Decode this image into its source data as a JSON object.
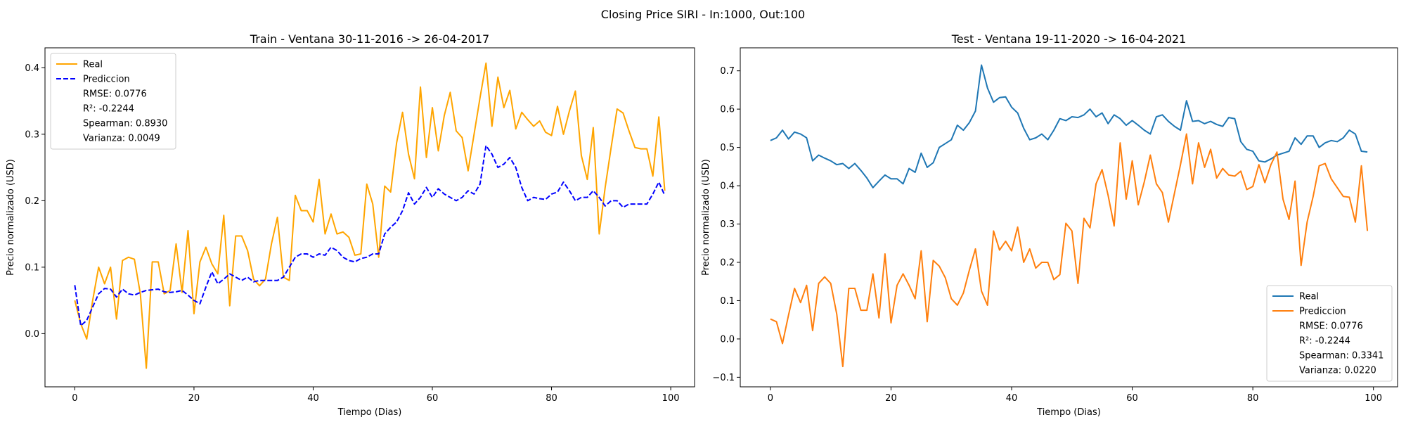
{
  "figure": {
    "suptitle": "Closing Price SIRI - In:1000, Out:100"
  },
  "chart_data": [
    {
      "type": "line",
      "title": "Train - Ventana 30-11-2016 -> 26-04-2017",
      "xlabel": "Tiempo (Dias)",
      "ylabel": "Precio normalizado (USD)",
      "xlim": [
        -5,
        104
      ],
      "ylim": [
        -0.08,
        0.43
      ],
      "x_ticks": [
        0,
        20,
        40,
        60,
        80,
        100
      ],
      "y_ticks": [
        0.0,
        0.1,
        0.2,
        0.3,
        0.4
      ],
      "y_tick_labels": [
        "0.0",
        "0.1",
        "0.2",
        "0.3",
        "0.4"
      ],
      "grid": false,
      "legend_position": "top-left",
      "series": [
        {
          "name": "Real",
          "color": "#FFA500",
          "style": "solid",
          "values": [
            0.05,
            0.015,
            -0.008,
            0.05,
            0.1,
            0.075,
            0.1,
            0.022,
            0.11,
            0.115,
            0.112,
            0.06,
            -0.052,
            0.108,
            0.108,
            0.06,
            0.065,
            0.135,
            0.062,
            0.155,
            0.03,
            0.108,
            0.13,
            0.105,
            0.09,
            0.178,
            0.042,
            0.147,
            0.147,
            0.125,
            0.082,
            0.072,
            0.082,
            0.135,
            0.175,
            0.085,
            0.08,
            0.208,
            0.185,
            0.185,
            0.168,
            0.232,
            0.15,
            0.18,
            0.15,
            0.153,
            0.145,
            0.118,
            0.12,
            0.225,
            0.195,
            0.115,
            0.222,
            0.213,
            0.287,
            0.333,
            0.27,
            0.233,
            0.371,
            0.265,
            0.34,
            0.275,
            0.328,
            0.363,
            0.305,
            0.295,
            0.245,
            0.3,
            0.355,
            0.407,
            0.312,
            0.386,
            0.34,
            0.366,
            0.308,
            0.333,
            0.322,
            0.312,
            0.32,
            0.303,
            0.298,
            0.342,
            0.3,
            0.335,
            0.365,
            0.268,
            0.232,
            0.31,
            0.15,
            0.22,
            0.28,
            0.338,
            0.332,
            0.305,
            0.28,
            0.278,
            0.278,
            0.237,
            0.326,
            0.215
          ]
        },
        {
          "name": "Prediccion",
          "color": "#0000FF",
          "style": "dashed",
          "values": [
            0.073,
            0.012,
            0.02,
            0.04,
            0.06,
            0.068,
            0.067,
            0.055,
            0.067,
            0.06,
            0.058,
            0.062,
            0.065,
            0.066,
            0.067,
            0.063,
            0.062,
            0.063,
            0.065,
            0.058,
            0.05,
            0.045,
            0.07,
            0.093,
            0.075,
            0.082,
            0.09,
            0.085,
            0.08,
            0.085,
            0.078,
            0.08,
            0.08,
            0.08,
            0.08,
            0.085,
            0.1,
            0.115,
            0.12,
            0.12,
            0.115,
            0.12,
            0.118,
            0.13,
            0.125,
            0.115,
            0.11,
            0.108,
            0.113,
            0.115,
            0.12,
            0.12,
            0.15,
            0.16,
            0.168,
            0.185,
            0.212,
            0.195,
            0.205,
            0.22,
            0.205,
            0.218,
            0.21,
            0.205,
            0.2,
            0.205,
            0.215,
            0.21,
            0.225,
            0.283,
            0.27,
            0.25,
            0.255,
            0.265,
            0.25,
            0.22,
            0.2,
            0.205,
            0.203,
            0.202,
            0.21,
            0.213,
            0.228,
            0.215,
            0.2,
            0.205,
            0.205,
            0.215,
            0.205,
            0.192,
            0.2,
            0.2,
            0.19,
            0.195,
            0.195,
            0.195,
            0.195,
            0.21,
            0.228,
            0.208
          ]
        }
      ],
      "legend_stats": [
        "RMSE: 0.0776",
        "R²: -0.2244",
        "Spearman: 0.8930",
        "Varianza: 0.0049"
      ]
    },
    {
      "type": "line",
      "title": "Test - Ventana 19-11-2020 -> 16-04-2021",
      "xlabel": "Tiempo (Dias)",
      "ylabel": "Precio normalizado (USD)",
      "xlim": [
        -5,
        104
      ],
      "ylim": [
        -0.125,
        0.76
      ],
      "x_ticks": [
        0,
        20,
        40,
        60,
        80,
        100
      ],
      "y_ticks": [
        -0.1,
        0.0,
        0.1,
        0.2,
        0.3,
        0.4,
        0.5,
        0.6,
        0.7
      ],
      "y_tick_labels": [
        "−0.1",
        "0.0",
        "0.1",
        "0.2",
        "0.3",
        "0.4",
        "0.5",
        "0.6",
        "0.7"
      ],
      "grid": false,
      "legend_position": "bottom-right",
      "series": [
        {
          "name": "Real",
          "color": "#1F77B4",
          "style": "solid",
          "values": [
            0.518,
            0.525,
            0.545,
            0.522,
            0.54,
            0.535,
            0.525,
            0.465,
            0.48,
            0.472,
            0.465,
            0.455,
            0.458,
            0.445,
            0.458,
            0.44,
            0.42,
            0.395,
            0.412,
            0.428,
            0.418,
            0.418,
            0.405,
            0.445,
            0.435,
            0.485,
            0.448,
            0.46,
            0.5,
            0.51,
            0.52,
            0.558,
            0.545,
            0.565,
            0.595,
            0.715,
            0.655,
            0.618,
            0.63,
            0.632,
            0.605,
            0.59,
            0.55,
            0.52,
            0.525,
            0.535,
            0.52,
            0.545,
            0.575,
            0.57,
            0.58,
            0.578,
            0.585,
            0.6,
            0.58,
            0.59,
            0.562,
            0.585,
            0.575,
            0.558,
            0.57,
            0.558,
            0.545,
            0.535,
            0.58,
            0.585,
            0.568,
            0.555,
            0.545,
            0.622,
            0.568,
            0.57,
            0.562,
            0.568,
            0.56,
            0.555,
            0.578,
            0.575,
            0.515,
            0.495,
            0.49,
            0.465,
            0.462,
            0.47,
            0.48,
            0.485,
            0.49,
            0.525,
            0.508,
            0.53,
            0.53,
            0.5,
            0.512,
            0.518,
            0.515,
            0.525,
            0.545,
            0.535,
            0.49,
            0.488
          ]
        },
        {
          "name": "Prediccion",
          "color": "#FF7F0E",
          "style": "solid",
          "values": [
            0.052,
            0.045,
            -0.012,
            0.062,
            0.132,
            0.095,
            0.14,
            0.022,
            0.145,
            0.162,
            0.145,
            0.065,
            -0.072,
            0.132,
            0.132,
            0.075,
            0.075,
            0.17,
            0.055,
            0.222,
            0.042,
            0.14,
            0.17,
            0.14,
            0.105,
            0.23,
            0.045,
            0.205,
            0.19,
            0.16,
            0.105,
            0.088,
            0.12,
            0.18,
            0.235,
            0.125,
            0.088,
            0.282,
            0.232,
            0.255,
            0.23,
            0.292,
            0.2,
            0.235,
            0.185,
            0.2,
            0.2,
            0.155,
            0.168,
            0.302,
            0.282,
            0.145,
            0.315,
            0.29,
            0.405,
            0.442,
            0.375,
            0.295,
            0.512,
            0.365,
            0.465,
            0.35,
            0.41,
            0.48,
            0.405,
            0.382,
            0.305,
            0.38,
            0.455,
            0.535,
            0.405,
            0.512,
            0.448,
            0.495,
            0.42,
            0.445,
            0.428,
            0.425,
            0.438,
            0.39,
            0.398,
            0.455,
            0.408,
            0.455,
            0.488,
            0.365,
            0.312,
            0.412,
            0.192,
            0.305,
            0.372,
            0.452,
            0.458,
            0.418,
            0.395,
            0.372,
            0.37,
            0.305,
            0.452,
            0.282
          ]
        }
      ],
      "legend_stats": [
        "RMSE: 0.0776",
        "R²: -0.2244",
        "Spearman: 0.3341",
        "Varianza: 0.0220"
      ]
    }
  ]
}
